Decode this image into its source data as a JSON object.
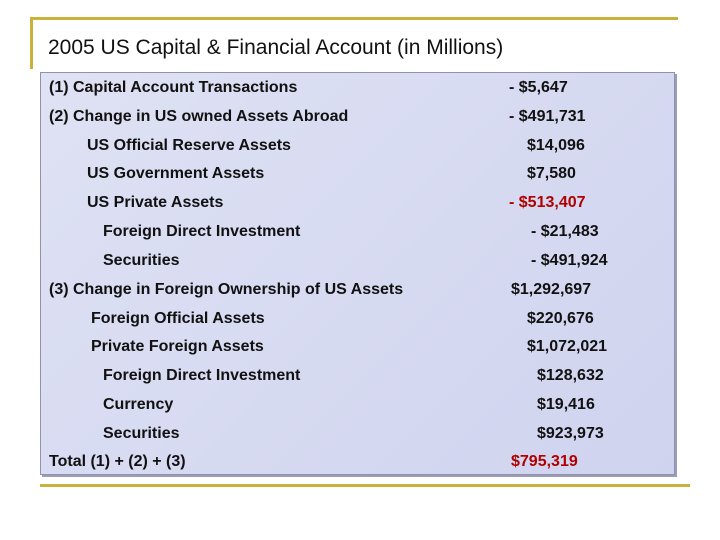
{
  "title": "2005 US Capital & Financial Account (in Millions)",
  "rows": [
    {
      "label": "(1) Capital Account Transactions",
      "value": "- $5,647"
    },
    {
      "label": "(2) Change in US owned Assets Abroad",
      "value": "- $491,731"
    },
    {
      "label": "US Official Reserve Assets",
      "value": "$14,096"
    },
    {
      "label": "US Government Assets",
      "value": "$7,580"
    },
    {
      "label": "US Private Assets",
      "value": "- $513,407"
    },
    {
      "label": "Foreign Direct Investment",
      "value": "- $21,483"
    },
    {
      "label": "Securities",
      "value": "- $491,924"
    },
    {
      "label": "(3) Change in Foreign Ownership of US Assets",
      "value": "$1,292,697"
    },
    {
      "label": "Foreign Official Assets",
      "value": "$220,676"
    },
    {
      "label": "Private Foreign Assets",
      "value": "$1,072,021"
    },
    {
      "label": "Foreign Direct Investment",
      "value": "$128,632"
    },
    {
      "label": "Currency",
      "value": "$19,416"
    },
    {
      "label": "Securities",
      "value": "$923,973"
    },
    {
      "label": "Total (1) + (2) + (3)",
      "value": "$795,319"
    }
  ],
  "colors": {
    "accent_rule": "#c9b23a",
    "panel": "#d6d9f0",
    "red_text": "#b00000"
  }
}
